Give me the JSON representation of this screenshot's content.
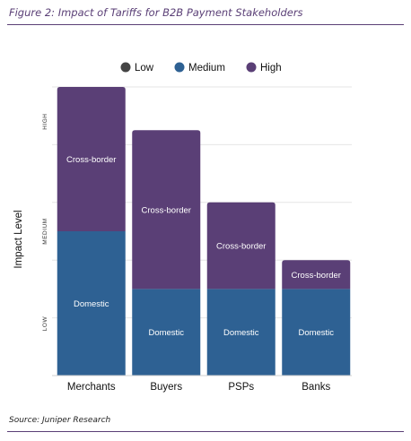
{
  "figure": {
    "title": "Figure 2: Impact of Tariffs for B2B Payment Stakeholders",
    "source": "Source: Juniper Research"
  },
  "chart_data": {
    "type": "bar",
    "stacked": true,
    "categories": [
      "Merchants",
      "Buyers",
      "PSPs",
      "Banks"
    ],
    "series": [
      {
        "name": "Domestic",
        "values": [
          2.5,
          1.5,
          1.5,
          1.5
        ],
        "color": "#2e6193"
      },
      {
        "name": "Cross-border",
        "values": [
          2.5,
          2.75,
          1.5,
          0.5
        ],
        "color": "#5a3f76"
      }
    ],
    "segment_label_color": "#ffffff",
    "ylabel": "Impact Level",
    "ylim": [
      0,
      5
    ],
    "y_ticks": [
      {
        "value": 0.9,
        "label": "LOW"
      },
      {
        "value": 2.5,
        "label": "MEDIUM"
      },
      {
        "value": 4.4,
        "label": "HIGH"
      }
    ],
    "legend": [
      {
        "label": "Low",
        "color": "#444444"
      },
      {
        "label": "Medium",
        "color": "#2e6193"
      },
      {
        "label": "High",
        "color": "#5a3f76"
      }
    ],
    "legend_position": "top-center",
    "grid": true
  }
}
